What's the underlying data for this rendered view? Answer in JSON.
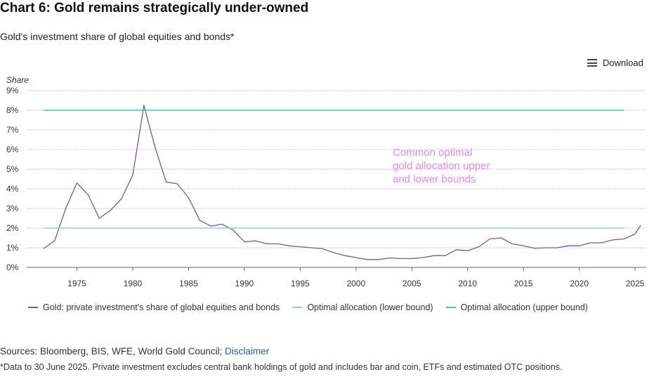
{
  "title": "Chart 6: Gold remains strategically under-owned",
  "subtitle": "Gold's investment share of global equities and bonds*",
  "download_label": "Download",
  "colors": {
    "gold": "#7d5a8c",
    "lower": "#8fc9ea",
    "upper": "#3cc7b4",
    "annotation": "#e28ae6",
    "grid": "#bbbbbb"
  },
  "chart_data": {
    "type": "line",
    "ylabel": "Share",
    "ylim": [
      0,
      9
    ],
    "xlim": [
      1970.5,
      2026
    ],
    "y_ticks": [
      "0%",
      "1%",
      "2%",
      "3%",
      "4%",
      "5%",
      "6%",
      "7%",
      "8%",
      "9%"
    ],
    "x_ticks": [
      "1975",
      "1980",
      "1985",
      "1990",
      "1995",
      "2000",
      "2005",
      "2010",
      "2015",
      "2020",
      "2025"
    ],
    "grid": true,
    "annotation": [
      "Common optimal",
      "gold allocation upper",
      "and lower bounds"
    ],
    "series": [
      {
        "name": "Gold: private investment's share of global equities and bonds",
        "x": [
          1972,
          1973,
          1974,
          1975,
          1976,
          1977,
          1978,
          1979,
          1980,
          1981,
          1982,
          1983,
          1984,
          1985,
          1986,
          1987,
          1988,
          1989,
          1990,
          1991,
          1992,
          1993,
          1994,
          1995,
          1996,
          1997,
          1998,
          1999,
          2000,
          2001,
          2002,
          2003,
          2004,
          2005,
          2006,
          2007,
          2008,
          2009,
          2010,
          2011,
          2012,
          2013,
          2014,
          2015,
          2016,
          2017,
          2018,
          2019,
          2020,
          2021,
          2022,
          2023,
          2024,
          2025,
          2025.5
        ],
        "values": [
          0.95,
          1.35,
          3.0,
          4.3,
          3.7,
          2.5,
          2.9,
          3.5,
          4.7,
          8.25,
          6.1,
          4.35,
          4.25,
          3.55,
          2.4,
          2.1,
          2.2,
          1.9,
          1.3,
          1.35,
          1.2,
          1.2,
          1.1,
          1.05,
          1.0,
          0.95,
          0.75,
          0.6,
          0.5,
          0.4,
          0.4,
          0.48,
          0.45,
          0.45,
          0.5,
          0.6,
          0.6,
          0.9,
          0.85,
          1.05,
          1.45,
          1.5,
          1.2,
          1.1,
          0.97,
          1.0,
          1.0,
          1.1,
          1.1,
          1.25,
          1.25,
          1.4,
          1.45,
          1.7,
          2.15
        ]
      },
      {
        "name": "Optimal allocation (lower bound)",
        "x": [
          1972,
          2024
        ],
        "values": [
          2,
          2
        ]
      },
      {
        "name": "Optimal allocation (upper bound)",
        "x": [
          1972,
          2024
        ],
        "values": [
          8,
          8
        ]
      }
    ]
  },
  "sources": {
    "prefix": "Sources: Bloomberg, BIS, WFE, World Gold Council; ",
    "link": "Disclaimer"
  },
  "footnote": "*Data to 30 June 2025. Private investment excludes central bank holdings of gold and includes bar and coin, ETFs and estimated OTC positions."
}
